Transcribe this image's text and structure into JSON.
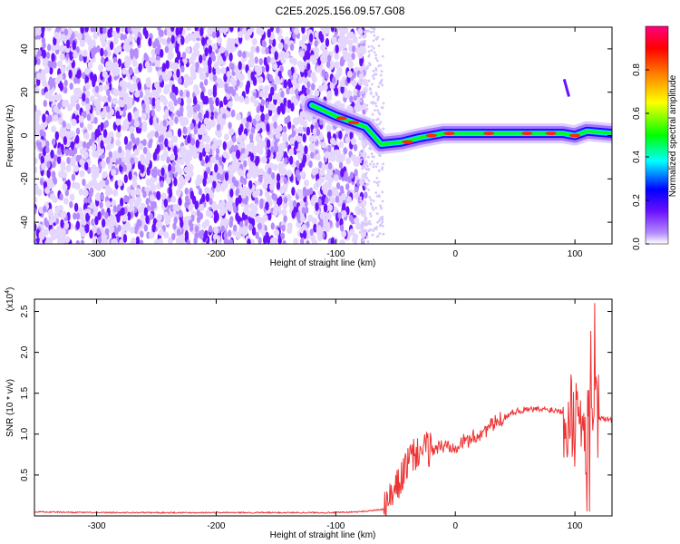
{
  "title": "C2E5.2025.156.09.57.G08",
  "chart_data": [
    {
      "type": "heatmap",
      "xlabel": "Height of straight line (km)",
      "ylabel": "Frequency (Hz)",
      "xlim": [
        -352,
        131
      ],
      "ylim": [
        -50,
        50
      ],
      "xticks": [
        -300,
        -200,
        -100,
        0,
        100
      ],
      "yticks": [
        -40,
        -20,
        0,
        20,
        40
      ],
      "colorbar": {
        "label": "Normalized spectral amplitude",
        "range": [
          0,
          1
        ],
        "ticks": [
          0.0,
          0.2,
          0.4,
          0.6,
          0.8
        ],
        "tick_labels": [
          "0.0",
          "0.2",
          "0.4",
          "0.6",
          "0.8"
        ],
        "colors": [
          "#ffffff",
          "#b58bff",
          "#6a10ff",
          "#0000ff",
          "#00ffff",
          "#00ff00",
          "#ffff00",
          "#ff7f00",
          "#ff0000",
          "#ff007f"
        ]
      },
      "signal_trace": [
        {
          "x": -120,
          "y": 14
        },
        {
          "x": -100,
          "y": 9
        },
        {
          "x": -90,
          "y": 7
        },
        {
          "x": -75,
          "y": 4
        },
        {
          "x": -62,
          "y": -4
        },
        {
          "x": -45,
          "y": -3
        },
        {
          "x": -30,
          "y": -1
        },
        {
          "x": -10,
          "y": 1
        },
        {
          "x": 10,
          "y": 1
        },
        {
          "x": 30,
          "y": 1
        },
        {
          "x": 60,
          "y": 1
        },
        {
          "x": 90,
          "y": 1
        },
        {
          "x": 100,
          "y": 0
        },
        {
          "x": 110,
          "y": 2
        },
        {
          "x": 131,
          "y": 1
        }
      ],
      "noise_region_xmax": -75
    },
    {
      "type": "line",
      "xlabel": "Height of straight line (km)",
      "ylabel": "SNR (10 * v/v)",
      "multiplier_label": "(x10",
      "multiplier_exp": "4",
      "multiplier_close": ")",
      "xlim": [
        -352,
        131
      ],
      "ylim": [
        0,
        2.65
      ],
      "xticks": [
        -300,
        -200,
        -100,
        0,
        100
      ],
      "yticks": [
        0.5,
        1.0,
        1.5,
        2.0,
        2.5
      ],
      "ytick_labels": [
        "0.5",
        "1.0",
        "1.5",
        "2.0",
        "2.5"
      ],
      "color": "#ee3333",
      "series": [
        {
          "x": [
            -352,
            -300,
            -250,
            -200,
            -150,
            -100,
            -80,
            -60,
            -50,
            -40,
            -30,
            -20,
            -10,
            0,
            10,
            20,
            30,
            40,
            50,
            60,
            70,
            80,
            90,
            95,
            100,
            105,
            110,
            115,
            120,
            131
          ],
          "y": [
            0.05,
            0.04,
            0.04,
            0.04,
            0.04,
            0.04,
            0.05,
            0.08,
            0.3,
            0.65,
            0.8,
            0.82,
            0.85,
            0.87,
            0.92,
            1.0,
            1.1,
            1.2,
            1.28,
            1.3,
            1.3,
            1.3,
            1.28,
            1.25,
            1.2,
            1.1,
            1.05,
            1.15,
            1.2,
            1.17
          ]
        }
      ]
    }
  ]
}
